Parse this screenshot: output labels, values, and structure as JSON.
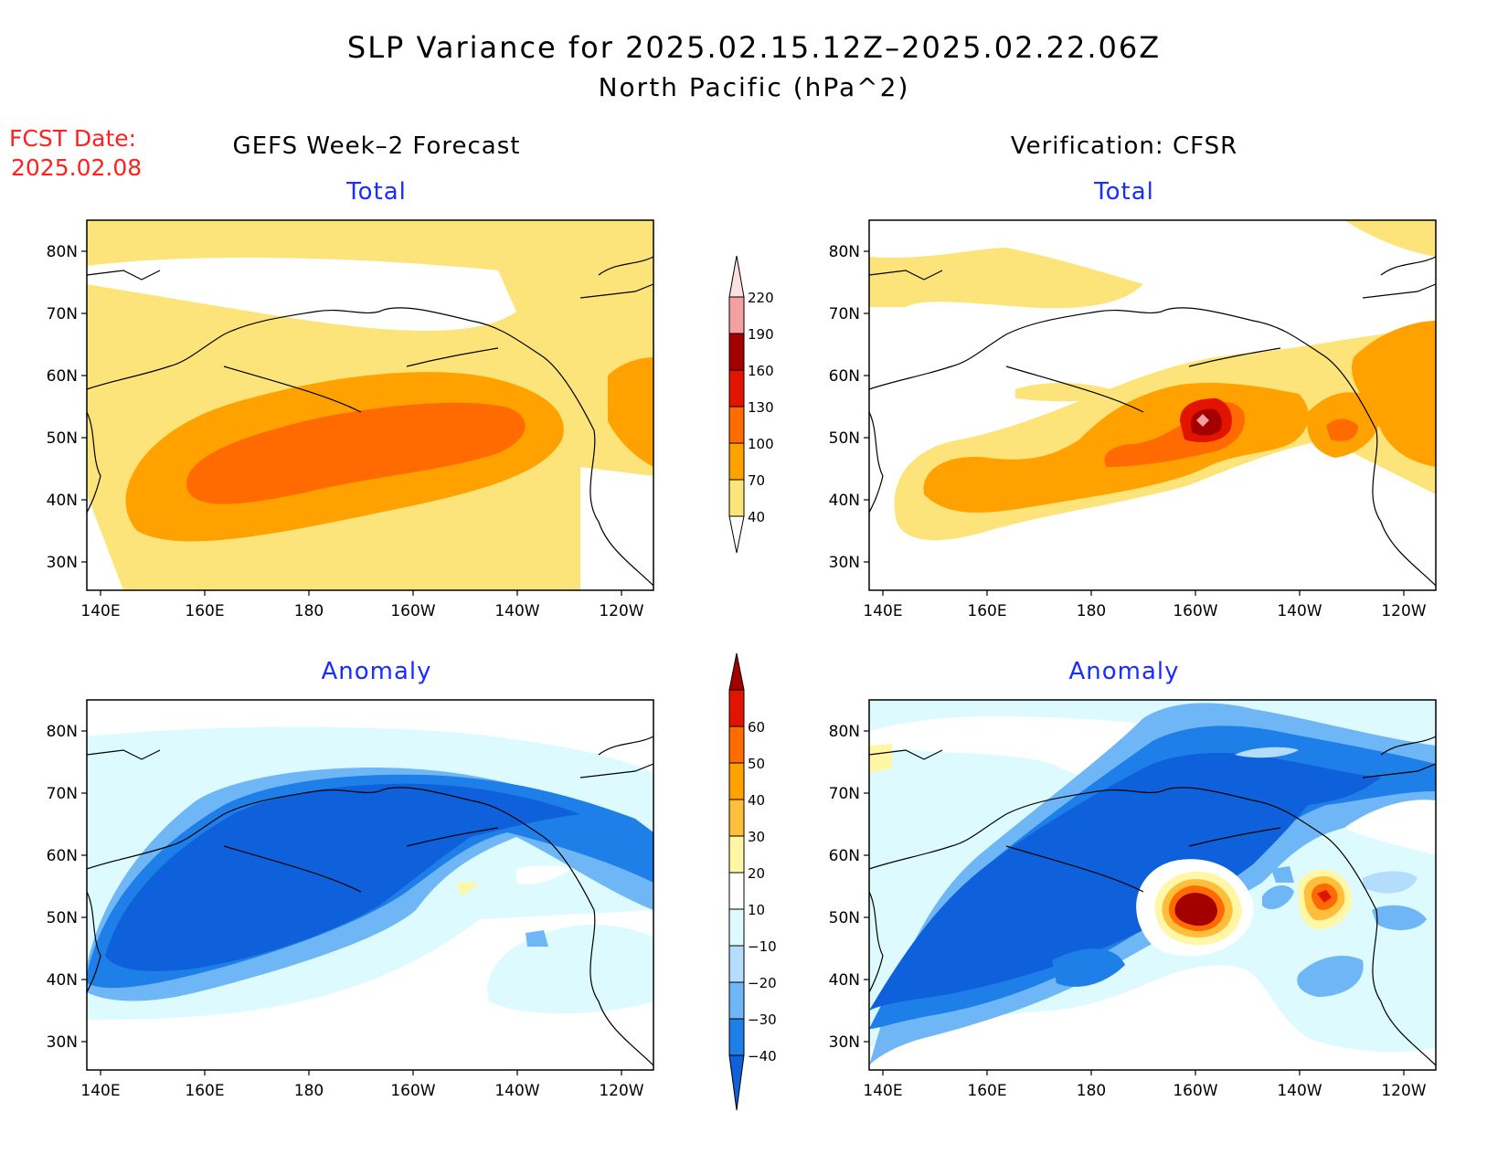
{
  "title": {
    "line1": "SLP Variance for 2025.02.15.12Z–2025.02.22.06Z",
    "line2": "North Pacific (hPa^2)"
  },
  "fcst": {
    "label": "FCST Date:",
    "date": "2025.02.08",
    "color": "#ff2020"
  },
  "columns": {
    "left": "GEFS Week–2 Forecast",
    "right": "Verification: CFSR"
  },
  "panel_titles": {
    "total": "Total",
    "anomaly": "Anomaly",
    "color": "#1a2cff"
  },
  "axes": {
    "x_ticks": [
      "140E",
      "160E",
      "180",
      "160W",
      "140W",
      "120W"
    ],
    "y_ticks": [
      "80N",
      "70N",
      "60N",
      "50N",
      "40N",
      "30N"
    ]
  },
  "colorbars": {
    "total": {
      "levels": [
        "40",
        "70",
        "100",
        "130",
        "160",
        "190",
        "220"
      ],
      "colors": [
        "#fde47a",
        "#ffa200",
        "#ff6b00",
        "#e21400",
        "#a50000",
        "#f4a0a0",
        "#fde0e0"
      ]
    },
    "anomaly": {
      "levels": [
        "−40",
        "−30",
        "−20",
        "−10",
        "10",
        "20",
        "30",
        "40",
        "50",
        "60"
      ],
      "colors": [
        "#0f60db",
        "#1f7fe8",
        "#6fb6f6",
        "#b4dcfc",
        "#ddfbff",
        "#ffffff",
        "#fff6a6",
        "#ffbf3a",
        "#ffa200",
        "#ff6b00",
        "#e21400",
        "#a50000"
      ]
    }
  },
  "field_colors": {
    "total_low": "#fde47a",
    "total_mid": "#ffa200",
    "total_high": "#ff6b00",
    "total_higher": "#e21400",
    "total_peak": "#a50000",
    "total_center": "#f4a0a0",
    "anom_neg40": "#0f60db",
    "anom_neg30": "#1f7fe8",
    "anom_neg20": "#6fb6f6",
    "anom_neg10": "#b4dcfc",
    "anom_neg0": "#ddfbff",
    "anom_pos10": "#fff6a6",
    "anom_pos20": "#ffbf3a",
    "anom_pos30": "#ffa200",
    "anom_pos50": "#e21400",
    "anom_pos60": "#a50000"
  }
}
